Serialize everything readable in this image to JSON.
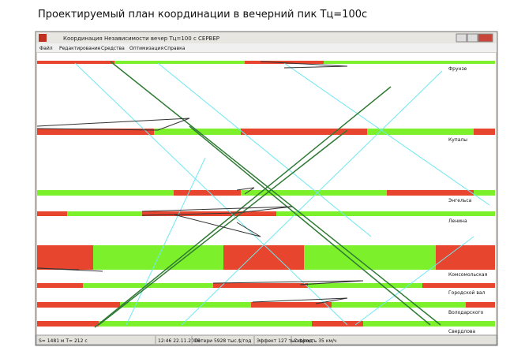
{
  "header": {
    "title": "Проектируемый план координации в вечерний пик Тц=100с"
  },
  "window": {
    "title": "Координация  Независимости  вечер  Тц=100 с СЕРВЕР"
  },
  "menu": [
    "Файл",
    "Редактирование",
    "Средства",
    "Оптимизация",
    "Справка"
  ],
  "intersections": [
    "Фрунзе",
    "Купалы",
    "Энгельса",
    "Ленина",
    "Комсомольская",
    "Городской вал",
    "Володарского",
    "Свердлова"
  ],
  "status": [
    "S= 1481 м  T= 212 с",
    "12:46  22.11.2016",
    "Потери  5928 тыс.$/год",
    "Эффект  127 тыс.$/год",
    "Скорость  35 км/ч"
  ]
}
